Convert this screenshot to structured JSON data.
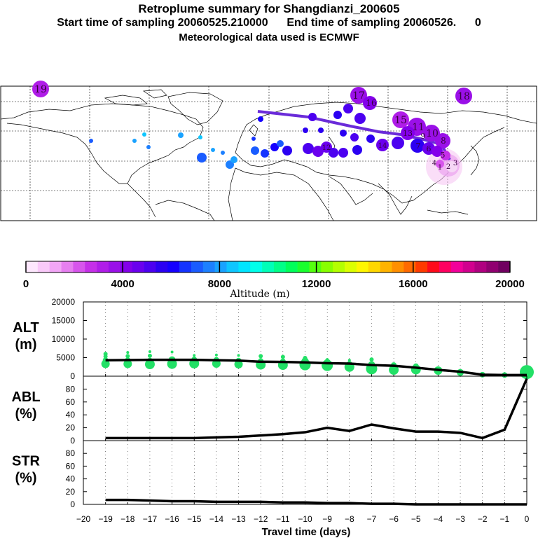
{
  "header": {
    "title": "Retroplume summary for Shangdianzi_200605",
    "sampling": "Start time of sampling 20060525.210000      End time of sampling 20060526.      0",
    "met": "Meteorological data used is ECMWF"
  },
  "colors": {
    "track": "#6a2bd9",
    "alt_points": "#22e066",
    "line": "#000000"
  },
  "map_labels": [
    "19",
    "17",
    "16",
    "18",
    "15",
    "13",
    "11",
    "10",
    "9",
    "8",
    "7",
    "6",
    "5",
    "4",
    "3",
    "2",
    "1",
    "14",
    "12"
  ],
  "chart_data": [
    {
      "type": "colorbar",
      "xlabel": "Altitude (m)",
      "ticks": [
        0,
        4000,
        8000,
        12000,
        16000,
        20000
      ],
      "range": [
        0,
        20000
      ],
      "colors": [
        "#fde7fd",
        "#f9c9f9",
        "#f2a6f6",
        "#e67ff0",
        "#d755ec",
        "#c52fe8",
        "#b01de8",
        "#9a10e8",
        "#8300ea",
        "#6a00ee",
        "#4c00f0",
        "#2b00f2",
        "#1500ff",
        "#1433ff",
        "#1a5cff",
        "#1d80ff",
        "#1aa2ff",
        "#0fc6ff",
        "#00e5ff",
        "#00ffea",
        "#00ffb8",
        "#00ff88",
        "#00ff5a",
        "#19ff2e",
        "#55ff10",
        "#88ff00",
        "#b4ff00",
        "#dcff00",
        "#fff600",
        "#ffd700",
        "#ffb300",
        "#ff8f00",
        "#ff6a00",
        "#ff3a00",
        "#ff0a1a",
        "#ff0060",
        "#f2009a",
        "#d1008e",
        "#b00080",
        "#900070",
        "#700060"
      ]
    },
    {
      "type": "line",
      "title": "ALT",
      "unit": "(m)",
      "x": [
        -19,
        -18,
        -17,
        -16,
        -15,
        -14,
        -13,
        -12,
        -11,
        -10,
        -9,
        -8,
        -7,
        -6,
        -5,
        -4,
        -3,
        -2,
        -1,
        0
      ],
      "y": [
        4300,
        4350,
        4400,
        4400,
        4400,
        4300,
        4200,
        3900,
        3850,
        3700,
        3500,
        3400,
        3000,
        2800,
        2300,
        1700,
        1200,
        400,
        300,
        300
      ],
      "ylim": [
        0,
        20000
      ],
      "yticks": [
        0,
        5000,
        10000,
        15000,
        20000
      ],
      "scatter_x": [
        -19,
        -19,
        -19,
        -19,
        -18,
        -18,
        -18,
        -18,
        -17,
        -17,
        -17,
        -17,
        -16,
        -16,
        -16,
        -15,
        -15,
        -15,
        -14,
        -14,
        -14,
        -13,
        -13,
        -13,
        -12,
        -12,
        -12,
        -11,
        -11,
        -11,
        -10,
        -10,
        -10,
        -9,
        -9,
        -9,
        -8,
        -8,
        -8,
        -7,
        -7,
        -7,
        -6,
        -6,
        -5,
        -5,
        -4,
        -3,
        -2,
        -1,
        0
      ],
      "scatter_y": [
        3300,
        4300,
        5300,
        6000,
        3300,
        4300,
        5400,
        6400,
        3200,
        4200,
        5500,
        6600,
        3300,
        4400,
        6500,
        3400,
        4500,
        5600,
        3400,
        4400,
        5700,
        3200,
        4200,
        5600,
        3100,
        4100,
        5400,
        3000,
        4000,
        5200,
        3100,
        4100,
        4900,
        2900,
        3700,
        4500,
        2500,
        3300,
        4300,
        2000,
        3100,
        4500,
        1700,
        3000,
        1800,
        2700,
        1500,
        1000,
        400,
        300,
        1100
      ],
      "scatter_r": [
        6,
        4,
        3,
        3,
        6,
        4,
        3,
        2,
        7,
        4,
        3,
        2,
        7,
        5,
        2,
        7,
        4,
        2,
        6,
        4,
        2,
        6,
        4,
        2,
        7,
        4,
        3,
        7,
        4,
        3,
        8,
        5,
        3,
        8,
        5,
        2,
        7,
        4,
        2,
        8,
        5,
        3,
        7,
        4,
        7,
        4,
        6,
        5,
        4,
        4,
        10
      ]
    },
    {
      "type": "line",
      "title": "ABL",
      "unit": "(%)",
      "x": [
        -19,
        -18,
        -17,
        -16,
        -15,
        -14,
        -13,
        -12,
        -11,
        -10,
        -9,
        -8,
        -7,
        -6,
        -5,
        -4,
        -3,
        -2,
        -1,
        0
      ],
      "y": [
        4,
        4,
        4,
        4,
        4,
        5,
        6,
        8,
        10,
        13,
        20,
        15,
        25,
        19,
        14,
        14,
        12,
        4,
        17,
        96
      ],
      "ylim": [
        0,
        100
      ],
      "yticks": [
        0,
        20,
        40,
        60,
        80
      ]
    },
    {
      "type": "line",
      "title": "STR",
      "unit": "(%)",
      "x": [
        -19,
        -18,
        -17,
        -16,
        -15,
        -14,
        -13,
        -12,
        -11,
        -10,
        -9,
        -8,
        -7,
        -6,
        -5,
        -4,
        -3,
        -2,
        -1,
        0
      ],
      "y": [
        7,
        7,
        6,
        5,
        5,
        4,
        4,
        4,
        3,
        3,
        2,
        2,
        1,
        1,
        0,
        0,
        0,
        0,
        0,
        0
      ],
      "ylim": [
        0,
        100
      ],
      "yticks": [
        0,
        20,
        40,
        60,
        80
      ],
      "xlabel": "Travel time (days)",
      "xticks": [
        -20,
        -19,
        -18,
        -17,
        -16,
        -15,
        -14,
        -13,
        -12,
        -11,
        -10,
        -9,
        -8,
        -7,
        -6,
        -5,
        -4,
        -3,
        -2,
        -1,
        0
      ]
    }
  ]
}
